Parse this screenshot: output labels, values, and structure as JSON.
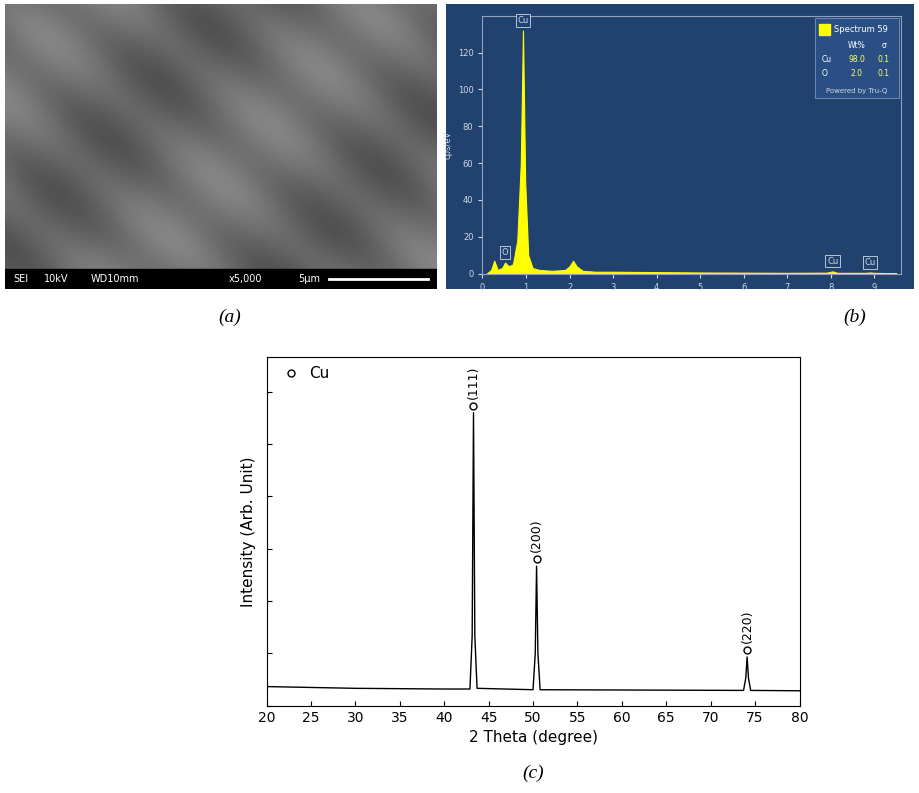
{
  "image_panel": {
    "type": "image",
    "info_bar": [
      "SEI",
      "10kV",
      "WD10mm",
      "x5,000",
      "5μm"
    ],
    "caption": "(a)"
  },
  "chart_data": [
    {
      "type": "area",
      "caption": "(b)",
      "y_label": "cps/eV",
      "x": [
        0.1,
        0.2,
        0.27,
        0.35,
        0.45,
        0.52,
        0.6,
        0.7,
        0.8,
        0.88,
        0.93,
        0.98,
        1.05,
        1.15,
        1.3,
        1.6,
        1.9,
        2.0,
        2.08,
        2.16,
        2.3,
        2.6,
        3.0,
        4.0,
        5.0,
        6.0,
        7.0,
        7.9,
        8.04,
        8.15,
        8.8,
        8.9,
        9.0,
        9.5
      ],
      "values": [
        0,
        2,
        7,
        2,
        3,
        6,
        4,
        5,
        18,
        60,
        132,
        50,
        10,
        3,
        2,
        1.5,
        2,
        4,
        7,
        4,
        1.5,
        1,
        1,
        0.8,
        0.6,
        0.5,
        0.4,
        0.5,
        1.2,
        0.4,
        0.4,
        0.6,
        0.4,
        0.2
      ],
      "color": "#ffff00",
      "xlim": [
        0,
        9.6
      ],
      "xticks": [
        0,
        1,
        2,
        3,
        4,
        5,
        6,
        7,
        8,
        9
      ],
      "ylim": [
        0,
        140
      ],
      "yticks": [
        0,
        20,
        40,
        60,
        80,
        100,
        120
      ],
      "peak_labels": [
        {
          "x": 0.93,
          "label": "Cu"
        },
        {
          "x": 0.52,
          "label": "O"
        },
        {
          "x": 8.04,
          "label": "Cu"
        },
        {
          "x": 8.9,
          "label": "Cu"
        }
      ],
      "result_table": {
        "title": "Spectrum 59",
        "columns": [
          "Wt%",
          "σ"
        ],
        "rows": [
          {
            "element": "Cu",
            "values": [
              98.0,
              0.1
            ]
          },
          {
            "element": "O",
            "values": [
              2.0,
              0.1
            ]
          }
        ],
        "footer": "Powered by Tru-Q"
      }
    },
    {
      "type": "line",
      "caption": "(c)",
      "x_label": "2 Theta (degree)",
      "y_label": "Intensity (Arb. Unit)",
      "series": [
        {
          "name": "Cu",
          "color": "#000000",
          "marker": "o",
          "x": [
            20,
            30,
            40,
            42.9,
            43.15,
            43.3,
            43.45,
            43.7,
            50.0,
            50.25,
            50.4,
            50.55,
            50.8,
            73.7,
            73.95,
            74.1,
            74.25,
            74.5,
            80
          ],
          "values": [
            5.5,
            5,
            4.8,
            4.8,
            20,
            84,
            20,
            5,
            4.6,
            15,
            40,
            15,
            4.6,
            4.4,
            8,
            14,
            8,
            4.4,
            4.3
          ]
        }
      ],
      "peaks": [
        {
          "x": 43.3,
          "y": 84,
          "label": "(111)"
        },
        {
          "x": 50.4,
          "y": 40,
          "label": "(200)"
        },
        {
          "x": 74.1,
          "y": 14,
          "label": "(220)"
        }
      ],
      "xlim": [
        20,
        80
      ],
      "xticks": [
        20,
        25,
        30,
        35,
        40,
        45,
        50,
        55,
        60,
        65,
        70,
        75,
        80
      ],
      "ylim": [
        0,
        100
      ],
      "yticks": [
        0,
        15,
        30,
        45,
        60,
        75,
        90
      ],
      "tick_labels": "x",
      "legend": "upper left"
    }
  ]
}
